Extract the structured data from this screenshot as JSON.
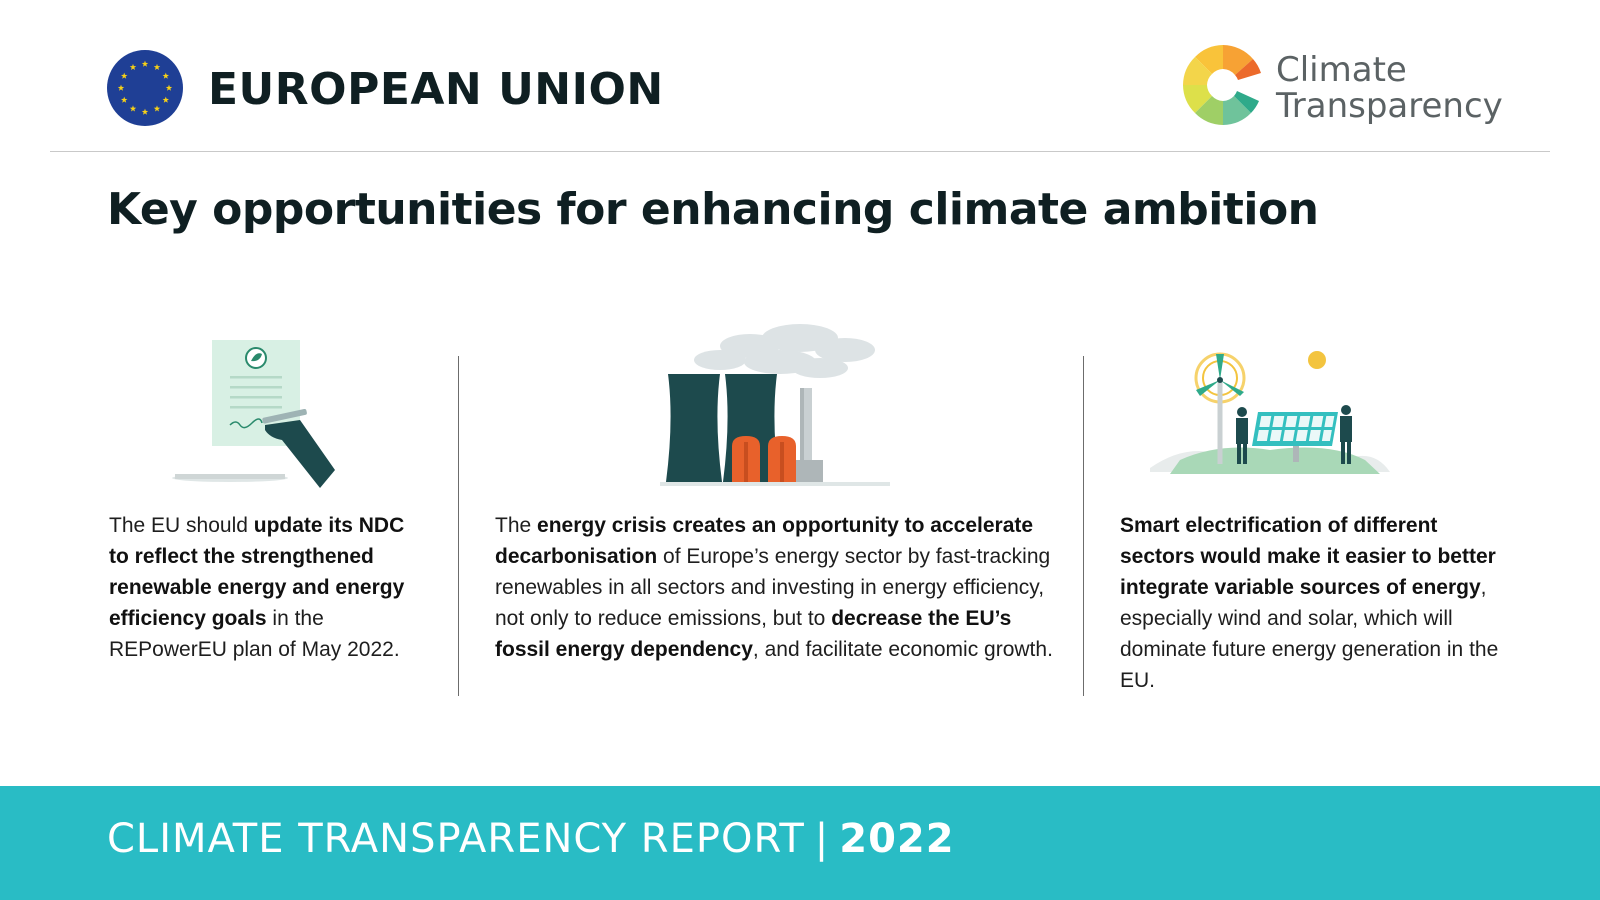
{
  "header": {
    "eu_title": "EUROPEAN UNION",
    "logo": {
      "line1": "Climate",
      "line2": "Transparency"
    }
  },
  "title": "Key opportunities for enhancing climate ambition",
  "columns": [
    {
      "icon": "signing-document-icon",
      "segments": [
        {
          "t": "The EU should ",
          "b": false
        },
        {
          "t": "update its NDC to reflect the strengthened renewable energy and energy efficiency goals",
          "b": true
        },
        {
          "t": " in the REPowerEU plan of May 2022.",
          "b": false
        }
      ]
    },
    {
      "icon": "power-plant-icon",
      "segments": [
        {
          "t": "The ",
          "b": false
        },
        {
          "t": "energy crisis creates an opportunity to accelerate decarbonisation",
          "b": true
        },
        {
          "t": " of Europe’s energy sector by fast-tracking renewables in all sectors and investing in energy efficiency, not only to reduce emissions, but to ",
          "b": false
        },
        {
          "t": "decrease the EU’s fossil energy dependency",
          "b": true
        },
        {
          "t": ", and facilitate economic growth.",
          "b": false
        }
      ]
    },
    {
      "icon": "wind-solar-icon",
      "segments": [
        {
          "t": "Smart electrification of different sectors would make it easier to better integrate variable sources of energy",
          "b": true
        },
        {
          "t": ", especially wind and solar, which will dominate future energy generation in the EU.",
          "b": false
        }
      ]
    }
  ],
  "footer": {
    "label": "CLIMATE TRANSPARENCY REPORT",
    "separator": "|",
    "year": "2022"
  },
  "colors": {
    "footer_bg": "#29bcc5",
    "eu_blue": "#1f3f95",
    "eu_star": "#f7d117",
    "dark_teal": "#1d4a4d",
    "orange": "#e8612b"
  }
}
